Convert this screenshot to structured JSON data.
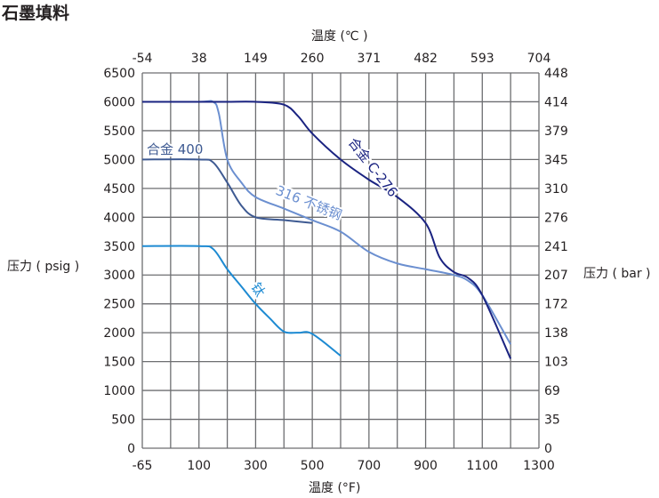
{
  "title": "石墨填料",
  "axes": {
    "top_title": "温度 (℃ )",
    "bottom_title": "温度 (°F)",
    "left_title": "压力 ( psig )",
    "right_title": "压力 ( bar )"
  },
  "colors": {
    "grid": "#6d6e71",
    "c276": "#1a2381",
    "ss316": "#6b8fd0",
    "alloy400": "#3e5a92",
    "titanium": "#1d8ad2"
  },
  "chart_data": {
    "type": "line",
    "title": "石墨填料",
    "xlabel": "温度 (°F)",
    "x2label": "温度 (℃ )",
    "ylabel": "压力 ( psig )",
    "y2label": "压力 ( bar )",
    "xlim": [
      -65,
      1300
    ],
    "ylim": [
      0,
      6500
    ],
    "grid": true,
    "x_ticks": [
      "-65",
      "100",
      "300",
      "500",
      "700",
      "900",
      "1100",
      "1300"
    ],
    "x2_ticks": [
      "-54",
      "38",
      "149",
      "260",
      "371",
      "482",
      "593",
      "704"
    ],
    "y_ticks": [
      "0",
      "500",
      "1000",
      "1500",
      "2000",
      "2500",
      "3000",
      "3500",
      "4000",
      "4500",
      "5000",
      "5500",
      "6000",
      "6500"
    ],
    "y2_ticks": [
      "0",
      "35",
      "69",
      "103",
      "138",
      "172",
      "207",
      "241",
      "276",
      "310",
      "345",
      "379",
      "414",
      "448"
    ],
    "series": [
      {
        "name": "合金 C-276",
        "x": [
          -65,
          100,
          200,
          300,
          400,
          450,
          500,
          600,
          700,
          800,
          900,
          950,
          1000,
          1050,
          1100,
          1200
        ],
        "y": [
          6000,
          6000,
          6000,
          6000,
          5950,
          5750,
          5450,
          5000,
          4650,
          4350,
          3900,
          3300,
          3050,
          2950,
          2650,
          1550
        ]
      },
      {
        "name": "316 不锈钢",
        "x": [
          -65,
          100,
          150,
          170,
          200,
          250,
          300,
          400,
          500,
          600,
          700,
          800,
          900,
          1000,
          1050,
          1100,
          1200
        ],
        "y": [
          6000,
          6000,
          6000,
          5800,
          5000,
          4600,
          4350,
          4150,
          3950,
          3750,
          3400,
          3200,
          3100,
          3000,
          2900,
          2650,
          1800
        ]
      },
      {
        "name": "合金 400",
        "x": [
          -65,
          100,
          150,
          200,
          250,
          300,
          400,
          500
        ],
        "y": [
          5000,
          5000,
          4950,
          4600,
          4200,
          4000,
          3950,
          3900
        ]
      },
      {
        "name": "钛",
        "x": [
          -65,
          100,
          150,
          200,
          250,
          300,
          350,
          400,
          450,
          500,
          600
        ],
        "y": [
          3500,
          3500,
          3450,
          3100,
          2800,
          2500,
          2250,
          2020,
          2000,
          1980,
          1600
        ]
      }
    ]
  },
  "labels": {
    "c276": "合金 C-276",
    "ss316": "316 不锈钢",
    "alloy400": "合金 400",
    "titanium": "钛"
  }
}
